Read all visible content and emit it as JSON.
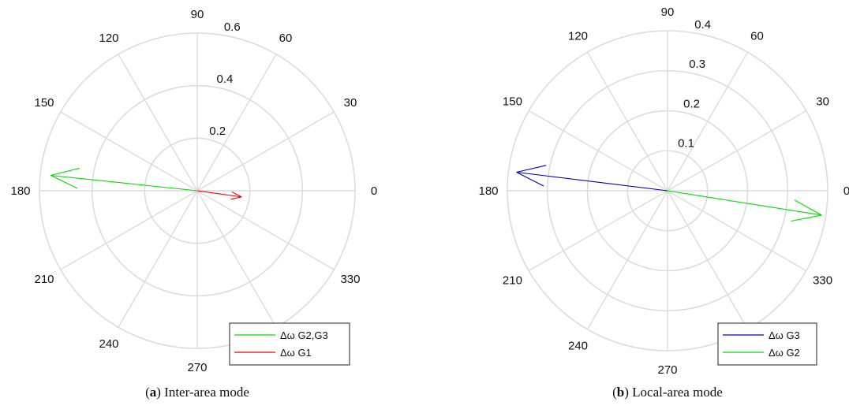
{
  "chart_data": [
    {
      "type": "polar-compass",
      "caption_letter": "a",
      "caption_text": "Inter-area mode",
      "rmax": 0.6,
      "radial_ticks": [
        0.2,
        0.4,
        0.6
      ],
      "radial_tick_labels": [
        "0.2",
        "0.4",
        "0.6"
      ],
      "angle_ticks": [
        0,
        30,
        60,
        90,
        120,
        150,
        180,
        210,
        240,
        270,
        300,
        330
      ],
      "angle_tick_labels": [
        "0",
        "30",
        "60",
        "90",
        "120",
        "150",
        "180",
        "210",
        "240",
        "270",
        "",
        "330"
      ],
      "series": [
        {
          "name": "Δω G2,G3",
          "color": "#00dd00",
          "angle_deg": 174,
          "magnitude": 0.56
        },
        {
          "name": "Δω G1",
          "color": "#ee0000",
          "angle_deg": -8,
          "magnitude": 0.17
        }
      ],
      "legend_position": "bottom-right",
      "grid": true
    },
    {
      "type": "polar-compass",
      "caption_letter": "b",
      "caption_text": "Local-area mode",
      "rmax": 0.4,
      "radial_ticks": [
        0.1,
        0.2,
        0.3,
        0.4
      ],
      "radial_tick_labels": [
        "0.1",
        "0.2",
        "0.3",
        "0.4"
      ],
      "angle_ticks": [
        0,
        30,
        60,
        90,
        120,
        150,
        180,
        210,
        240,
        270,
        300,
        330
      ],
      "angle_tick_labels": [
        "0",
        "30",
        "60",
        "90",
        "120",
        "150",
        "180",
        "210",
        "240",
        "270",
        "",
        "330"
      ],
      "series": [
        {
          "name": "Δω G3",
          "color": "#0000bb",
          "angle_deg": 173,
          "magnitude": 0.38
        },
        {
          "name": "Δω G2",
          "color": "#00dd00",
          "angle_deg": -9,
          "magnitude": 0.39
        }
      ],
      "legend_position": "bottom-right",
      "grid": true
    }
  ]
}
